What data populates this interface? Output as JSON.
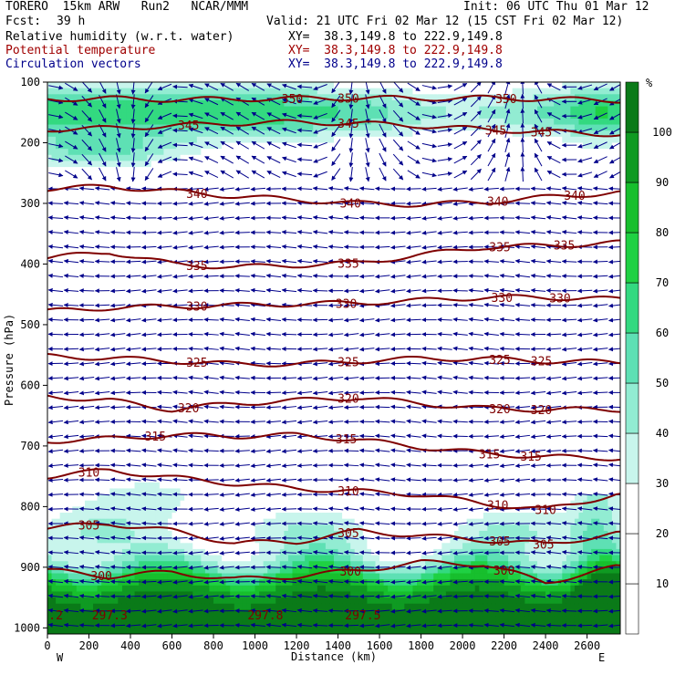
{
  "header": {
    "model": "TORERO  15km ARW   Run2   NCAR/MMM",
    "init": "Init: 06 UTC Thu 01 Mar 12",
    "fcst_label": "Fcst:",
    "fcst_value": "39 h",
    "valid": "Valid: 21 UTC Fri 02 Mar 12 (15 CST Fri 02 Mar 12)",
    "fields": [
      {
        "name": "Relative humidity (w.r.t. water)",
        "xy": "XY=  38.3,149.8 to 222.9,149.8",
        "color": "#000000"
      },
      {
        "name": "Potential temperature",
        "xy": "XY=  38.3,149.8 to 222.9,149.8",
        "color": "#a00000"
      },
      {
        "name": "Circulation vectors",
        "xy": "XY=  38.3,149.8 to 222.9,149.8",
        "color": "#00008b"
      }
    ]
  },
  "chart_data": {
    "type": "heatmap",
    "title": "",
    "xlabel": "Distance (km)",
    "ylabel": "Pressure (hPa)",
    "x_ticks": [
      0,
      200,
      400,
      600,
      800,
      1000,
      1200,
      1400,
      1600,
      1800,
      2000,
      2200,
      2400,
      2600
    ],
    "xlim": [
      0,
      2760
    ],
    "y_ticks": [
      100,
      200,
      300,
      400,
      500,
      600,
      700,
      800,
      900,
      1000
    ],
    "ylim": [
      1010,
      100
    ],
    "x_end_labels": {
      "left": "W",
      "right": "E"
    },
    "colorbar": {
      "unit": "%",
      "levels": [
        0,
        10,
        20,
        30,
        40,
        50,
        60,
        70,
        80,
        90,
        100,
        110
      ],
      "tick_labels": [
        "10",
        "20",
        "30",
        "40",
        "50",
        "60",
        "70",
        "80",
        "90",
        "100"
      ],
      "colors": [
        "#ffffff",
        "#ffffff",
        "#ffffff",
        "#c8f5ec",
        "#92ecd2",
        "#5ee0b4",
        "#33d980",
        "#1fd143",
        "#17bf2d",
        "#0f9a22",
        "#0a7a18"
      ]
    },
    "theta_contours": [
      {
        "value": 350,
        "x": [
          0,
          300,
          600,
          900,
          1200,
          1500,
          1800,
          2100,
          2400,
          2740
        ],
        "p": [
          128,
          127,
          129,
          128,
          127,
          126,
          127,
          126,
          128,
          130
        ],
        "labels": [
          {
            "x": 1180,
            "text": "350"
          },
          {
            "x": 1450,
            "text": "350"
          },
          {
            "x": 2210,
            "text": "350"
          }
        ]
      },
      {
        "value": 345,
        "x": [
          0,
          300,
          600,
          900,
          1200,
          1500,
          1800,
          2100,
          2400,
          2740
        ],
        "p": [
          178,
          176,
          172,
          168,
          166,
          168,
          172,
          178,
          182,
          186
        ],
        "labels": [
          {
            "x": 680,
            "text": "345"
          },
          {
            "x": 1450,
            "text": "345"
          },
          {
            "x": 2160,
            "text": "345"
          },
          {
            "x": 2380,
            "text": "345"
          }
        ]
      },
      {
        "value": 340,
        "x": [
          0,
          300,
          600,
          900,
          1200,
          1500,
          1800,
          2100,
          2400,
          2740
        ],
        "p": [
          276,
          272,
          280,
          288,
          294,
          300,
          302,
          298,
          290,
          282
        ],
        "labels": [
          {
            "x": 720,
            "text": "340"
          },
          {
            "x": 1460,
            "text": "340"
          },
          {
            "x": 2170,
            "text": "340"
          },
          {
            "x": 2540,
            "text": "340"
          }
        ]
      },
      {
        "value": 335,
        "x": [
          0,
          300,
          600,
          900,
          1200,
          1500,
          1800,
          2100,
          2400,
          2740
        ],
        "p": [
          390,
          380,
          400,
          405,
          402,
          398,
          385,
          372,
          370,
          365
        ],
        "labels": [
          {
            "x": 720,
            "text": "335"
          },
          {
            "x": 1450,
            "text": "335"
          },
          {
            "x": 2180,
            "text": "335"
          },
          {
            "x": 2490,
            "text": "335"
          }
        ]
      },
      {
        "value": 330,
        "x": [
          0,
          300,
          600,
          900,
          1200,
          1500,
          1800,
          2100,
          2400,
          2740
        ],
        "p": [
          478,
          472,
          470,
          468,
          466,
          464,
          460,
          455,
          455,
          458
        ],
        "labels": [
          {
            "x": 720,
            "text": "330"
          },
          {
            "x": 1440,
            "text": "330"
          },
          {
            "x": 2190,
            "text": "330"
          },
          {
            "x": 2470,
            "text": "330"
          }
        ]
      },
      {
        "value": 325,
        "x": [
          0,
          300,
          600,
          900,
          1200,
          1500,
          1800,
          2100,
          2400,
          2740
        ],
        "p": [
          552,
          555,
          560,
          565,
          565,
          560,
          556,
          556,
          560,
          562
        ],
        "labels": [
          {
            "x": 720,
            "text": "325"
          },
          {
            "x": 1450,
            "text": "325"
          },
          {
            "x": 2180,
            "text": "325"
          },
          {
            "x": 2380,
            "text": "325"
          }
        ]
      },
      {
        "value": 320,
        "x": [
          0,
          300,
          600,
          900,
          1200,
          1500,
          1800,
          2100,
          2400,
          2740
        ],
        "p": [
          618,
          625,
          640,
          630,
          625,
          620,
          630,
          638,
          640,
          640
        ],
        "labels": [
          {
            "x": 680,
            "text": "320"
          },
          {
            "x": 1450,
            "text": "320"
          },
          {
            "x": 2180,
            "text": "320"
          },
          {
            "x": 2380,
            "text": "320"
          }
        ]
      },
      {
        "value": 315,
        "x": [
          0,
          300,
          600,
          900,
          1200,
          1500,
          1800,
          2100,
          2400,
          2740
        ],
        "p": [
          692,
          688,
          682,
          684,
          682,
          690,
          702,
          712,
          718,
          720
        ],
        "labels": [
          {
            "x": 520,
            "text": "315"
          },
          {
            "x": 1440,
            "text": "315"
          },
          {
            "x": 2130,
            "text": "315"
          },
          {
            "x": 2330,
            "text": "315"
          }
        ]
      },
      {
        "value": 310,
        "x": [
          0,
          300,
          600,
          900,
          1200,
          1500,
          1800,
          2100,
          2400,
          2740
        ],
        "p": [
          750,
          740,
          752,
          762,
          770,
          775,
          780,
          795,
          805,
          780
        ],
        "labels": [
          {
            "x": 200,
            "text": "310"
          },
          {
            "x": 1450,
            "text": "310"
          },
          {
            "x": 2170,
            "text": "310"
          },
          {
            "x": 2400,
            "text": "310"
          }
        ]
      },
      {
        "value": 305,
        "x": [
          0,
          300,
          600,
          900,
          1200,
          1500,
          1800,
          2100,
          2400,
          2740
        ],
        "p": [
          835,
          828,
          840,
          860,
          858,
          840,
          848,
          855,
          862,
          845
        ],
        "labels": [
          {
            "x": 200,
            "text": "305"
          },
          {
            "x": 1450,
            "text": "305"
          },
          {
            "x": 2180,
            "text": "305"
          },
          {
            "x": 2390,
            "text": "305"
          }
        ]
      },
      {
        "value": 300,
        "x": [
          0,
          300,
          600,
          900,
          1200,
          1500,
          1800,
          2100,
          2400,
          2740
        ],
        "p": [
          905,
          915,
          908,
          920,
          915,
          905,
          892,
          895,
          925,
          900
        ],
        "labels": [
          {
            "x": 260,
            "text": "300"
          },
          {
            "x": 1460,
            "text": "300"
          },
          {
            "x": 2200,
            "text": "300"
          }
        ]
      }
    ],
    "bottom_labels": [
      {
        "x": 40,
        "text": ".2"
      },
      {
        "x": 300,
        "text": "297.3"
      },
      {
        "x": 1050,
        "text": "297.8"
      },
      {
        "x": 1520,
        "text": "297.5"
      }
    ]
  }
}
